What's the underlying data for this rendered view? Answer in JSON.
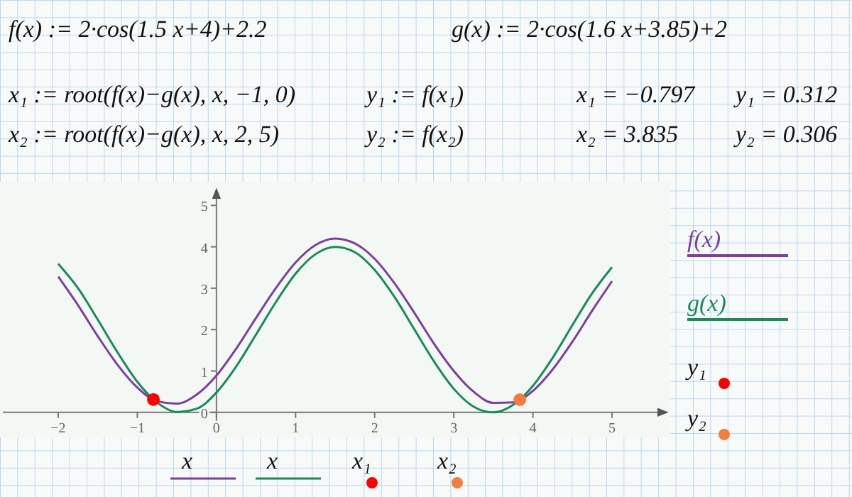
{
  "chart_data": {
    "type": "line",
    "annotations": [
      "f(x) := 2·cos(1.5 x+4)+2.2",
      "g(x) := 2·cos(1.6 x+3.85)+2",
      "x₁ := root(f(x)−g(x), x, −1, 0)",
      "y₁ := f(x₁)",
      "x₁ = −0.797",
      "y₁ = 0.312",
      "x₂ := root(f(x)−g(x), x, 2, 5)",
      "y₂ := f(x₂)",
      "x₂ = 3.835",
      "y₂ = 0.306",
      "x",
      "x",
      "x₁",
      "x₂"
    ],
    "x": [
      -2,
      -1.75,
      -1.5,
      -1.25,
      -1,
      -0.75,
      -0.5,
      -0.25,
      0,
      0.25,
      0.5,
      0.75,
      1,
      1.25,
      1.5,
      1.75,
      2,
      2.25,
      2.5,
      2.75,
      3,
      3.25,
      3.5,
      3.75,
      4,
      4.25,
      4.5,
      4.75,
      5
    ],
    "series": [
      {
        "name": "f(x)",
        "color": "#7b3fa0",
        "values": [
          3.28,
          2.59,
          1.84,
          1.15,
          0.6,
          0.27,
          0.21,
          0.43,
          0.89,
          1.54,
          2.28,
          3,
          3.62,
          4.04,
          4.2,
          4.08,
          3.71,
          3.12,
          2.41,
          1.66,
          1,
          0.5,
          0.23,
          0.24,
          0.52,
          1.04,
          1.71,
          2.46,
          3.17
        ]
      },
      {
        "name": "g(x)",
        "color": "#1a8a5a",
        "values": [
          3.59,
          3,
          2.24,
          1.45,
          0.74,
          0.24,
          0.01,
          0.09,
          0.48,
          1.11,
          1.88,
          2.66,
          3.35,
          3.82,
          4,
          3.87,
          3.44,
          2.79,
          2.01,
          1.23,
          0.57,
          0.14,
          0,
          0.18,
          0.64,
          1.32,
          2.11,
          2.88,
          3.51
        ]
      },
      {
        "name": "y₁",
        "type": "scatter",
        "color": "#ff0000",
        "x": [
          -0.797
        ],
        "values": [
          0.312
        ]
      },
      {
        "name": "y₂",
        "type": "scatter",
        "color": "#f47c3c",
        "x": [
          3.835
        ],
        "values": [
          0.306
        ]
      }
    ],
    "xlim": [
      -2.7,
      5.7
    ],
    "ylim": [
      -0.5,
      5.4
    ],
    "xticks": [
      -2,
      -1,
      0,
      1,
      2,
      3,
      4,
      5
    ],
    "yticks": [
      0,
      1,
      2,
      3,
      4,
      5
    ],
    "grid": false,
    "legend": "right",
    "line_style": "solid"
  }
}
